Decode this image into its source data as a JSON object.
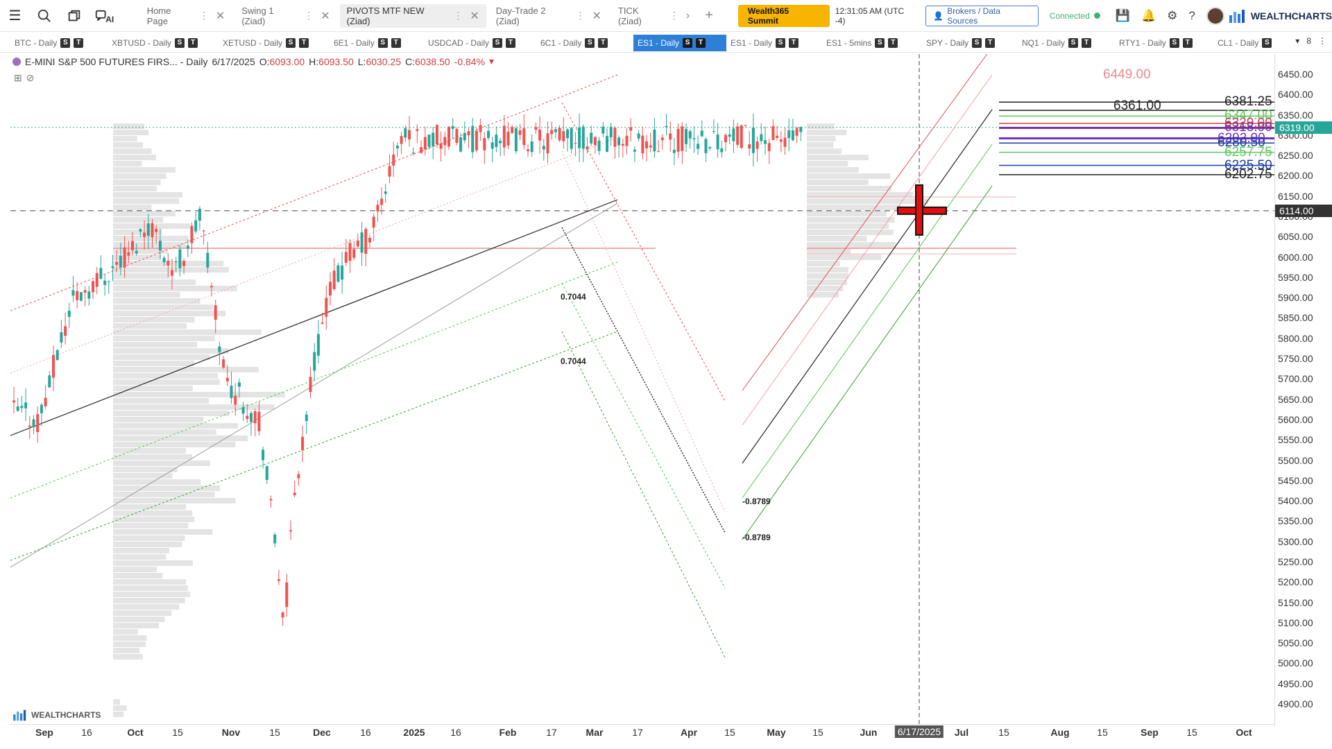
{
  "topbar": {
    "ai_label": "AI",
    "tabs": [
      {
        "label": "Home Page"
      },
      {
        "label": "Swing 1 (Ziad)"
      },
      {
        "label": "PIVOTS MTF NEW (Ziad)"
      },
      {
        "label": "Day-Trade 2 (Ziad)"
      },
      {
        "label": "TICK (Ziad)"
      }
    ],
    "summit_label": "Wealth365 Summit",
    "clock": "12:31:05 AM  (UTC -4)",
    "brokers_label": "Brokers / Data Sources",
    "connected_label": "Connected",
    "logo_text": "WEALTHCHARTS"
  },
  "symbols": [
    {
      "label": "BTC - Daily"
    },
    {
      "label": "XBTUSD - Daily"
    },
    {
      "label": "XETUSD - Daily"
    },
    {
      "label": "6E1 - Daily"
    },
    {
      "label": "USDCAD - Daily"
    },
    {
      "label": "6C1 - Daily"
    },
    {
      "label": "ES1 - Daily"
    },
    {
      "label": "ES1 - Daily"
    },
    {
      "label": "ES1 - 5mins"
    },
    {
      "label": "SPY - Daily"
    },
    {
      "label": "NQ1 - Daily"
    },
    {
      "label": "RTY1 - Daily"
    },
    {
      "label": "CL1 - Daily"
    }
  ],
  "symbol_badges": {
    "s": "S",
    "t": "T"
  },
  "symbar_count": "8",
  "legend": {
    "name": "E-MINI S&P 500 FUTURES FIRS... - Daily",
    "date": "6/17/2025",
    "o_label": "O:",
    "o": "6093.00",
    "h_label": "H:",
    "h": "6093.50",
    "l_label": "L:",
    "l": "6030.25",
    "c_label": "C:",
    "c": "6038.50",
    "chg": "-0.84%"
  },
  "chart_data": {
    "type": "candlestick",
    "symbol": "E-MINI S&P 500 FUTURES FIRS...",
    "timeframe": "Daily",
    "y_ticks": [
      "6450.00",
      "6400.00",
      "6350.00",
      "6300.00",
      "6250.00",
      "6200.00",
      "6150.00",
      "6100.00",
      "6050.00",
      "6000.00",
      "5950.00",
      "5900.00",
      "5850.00",
      "5800.00",
      "5750.00",
      "5700.00",
      "5650.00",
      "5600.00",
      "5550.00",
      "5500.00",
      "5450.00",
      "5400.00",
      "5350.00",
      "5300.00",
      "5250.00",
      "5200.00",
      "5150.00",
      "5100.00",
      "5050.00",
      "5000.00",
      "4950.00",
      "4900.00"
    ],
    "ylim": [
      4870,
      6480
    ],
    "x_ticks": [
      "Sep",
      "16",
      "Oct",
      "15",
      "Nov",
      "15",
      "Dec",
      "16",
      "2025",
      "16",
      "Feb",
      "17",
      "Mar",
      "17",
      "Apr",
      "15",
      "May",
      "15",
      "Jun",
      "6/17/2025",
      "Jul",
      "15",
      "Aug",
      "15",
      "Sep",
      "15",
      "Oct"
    ],
    "last_price": "6319.00",
    "cursor_price": "6114.00",
    "cursor_date": "6/17/2025",
    "pivot_levels": [
      {
        "label": "6449.00",
        "value": 6449.0,
        "color": "#e88c8c"
      },
      {
        "label": "6381.25",
        "value": 6381.25,
        "color": "#222222"
      },
      {
        "label": "6361.00",
        "value": 6361.0,
        "color": "#222222"
      },
      {
        "label": "6347.00",
        "value": 6347.0,
        "color": "#5cc85c"
      },
      {
        "label": "6329.00",
        "value": 6329.0,
        "color": "#d04050"
      },
      {
        "label": "6318.00",
        "value": 6318.0,
        "color": "#7030a0"
      },
      {
        "label": "6292.00",
        "value": 6292.0,
        "color": "#7030c0"
      },
      {
        "label": "6280.50",
        "value": 6280.5,
        "color": "#1a3aa0"
      },
      {
        "label": "6257.75",
        "value": 6257.75,
        "color": "#5cc85c"
      },
      {
        "label": "6225.50",
        "value": 6225.5,
        "color": "#1a3aa0"
      },
      {
        "label": "6202.75",
        "value": 6202.75,
        "color": "#222222"
      }
    ],
    "annotations": [
      "0.7044",
      "0.7044",
      "-0.8789",
      "-0.8789"
    ],
    "colors": {
      "up": "#26a69a",
      "down": "#ef5350",
      "last": "#26a69a"
    }
  },
  "watermark": "WEALTHCHARTS"
}
